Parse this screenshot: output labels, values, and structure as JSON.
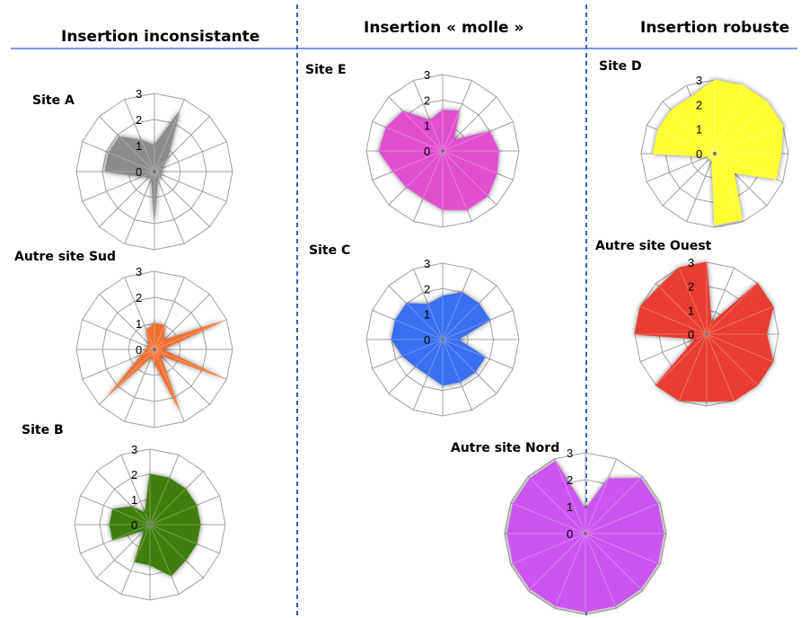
{
  "columns": [
    {
      "title": "Insertion inconsistante"
    },
    {
      "title": "Insertion « molle »"
    },
    {
      "title": "Insertion robuste"
    }
  ],
  "chart_data": [
    {
      "type": "radar",
      "label": "Site A",
      "color": "#8c8c8c",
      "rmax": 3,
      "ticks": [
        "0",
        "1",
        "2",
        "3"
      ],
      "values": [
        1,
        2.5,
        0.7,
        0.3,
        0.3,
        0.3,
        0.3,
        0.3,
        1.9,
        0.3,
        0.3,
        0.5,
        1.9,
        1.9,
        1.9,
        1.3
      ]
    },
    {
      "type": "radar",
      "label": "Autre site Sud",
      "color": "#f07030",
      "rmax": 3,
      "ticks": [
        "0",
        "1",
        "2",
        "3"
      ],
      "values": [
        1,
        1,
        0.5,
        2.8,
        0.3,
        2.8,
        0.3,
        2.5,
        0.5,
        0.3,
        2.5,
        0.5,
        0.3,
        0.3,
        0.3,
        0.8
      ]
    },
    {
      "type": "radar",
      "label": "Site B",
      "color": "#3f7f0f",
      "rmax": 3,
      "ticks": [
        "0",
        "1",
        "2",
        "3"
      ],
      "values": [
        2,
        2,
        2,
        2,
        2,
        2,
        2,
        2.2,
        1.6,
        1.6,
        0.3,
        1.6,
        1.6,
        1.6,
        1,
        0.5
      ]
    },
    {
      "type": "radar",
      "label": "Site E",
      "color": "#e050d0",
      "rmax": 3,
      "ticks": [
        "0",
        "1",
        "2",
        "3"
      ],
      "values": [
        1.6,
        1.7,
        0.6,
        2,
        2.2,
        2.3,
        2.5,
        2.5,
        2.3,
        2,
        2,
        2.1,
        2.5,
        2.4,
        2.2,
        1.3
      ]
    },
    {
      "type": "radar",
      "label": "Site C",
      "color": "#3a6ef0",
      "rmax": 3,
      "ticks": [
        "0",
        "1",
        "2",
        "3"
      ],
      "values": [
        1.7,
        2,
        2,
        2,
        0.6,
        1.8,
        1.8,
        1.8,
        1.8,
        1.5,
        1.5,
        1.7,
        2,
        2,
        2,
        1.5
      ]
    },
    {
      "type": "radar",
      "label": "Site D",
      "color": "#ffff33",
      "rmax": 3,
      "ticks": [
        "0",
        "1",
        "2",
        "3"
      ],
      "values": [
        3,
        3,
        3,
        3,
        2.7,
        2.7,
        1.1,
        2.9,
        2.9,
        0.3,
        0.3,
        0.3,
        2.5,
        2.5,
        2.5,
        2.5
      ]
    },
    {
      "type": "radar",
      "label": "Autre site Ouest",
      "color": "#e83c30",
      "rmax": 3,
      "ticks": [
        "0",
        "1",
        "2",
        "3"
      ],
      "values": [
        3,
        0.5,
        3,
        3,
        2.5,
        3,
        3,
        3,
        2.8,
        3,
        3,
        0.5,
        3,
        3,
        2.8,
        3
      ]
    },
    {
      "type": "radar",
      "label": "Autre site Nord",
      "color": "#cc55f0",
      "rmax": 3,
      "ticks": [
        "0",
        "1",
        "2",
        "3"
      ],
      "values": [
        0.9,
        2.2,
        2.9,
        2.9,
        2.9,
        2.9,
        2.9,
        2.9,
        2.9,
        2.9,
        2.9,
        2.9,
        2.9,
        2.9,
        2.9,
        2.9
      ]
    }
  ]
}
